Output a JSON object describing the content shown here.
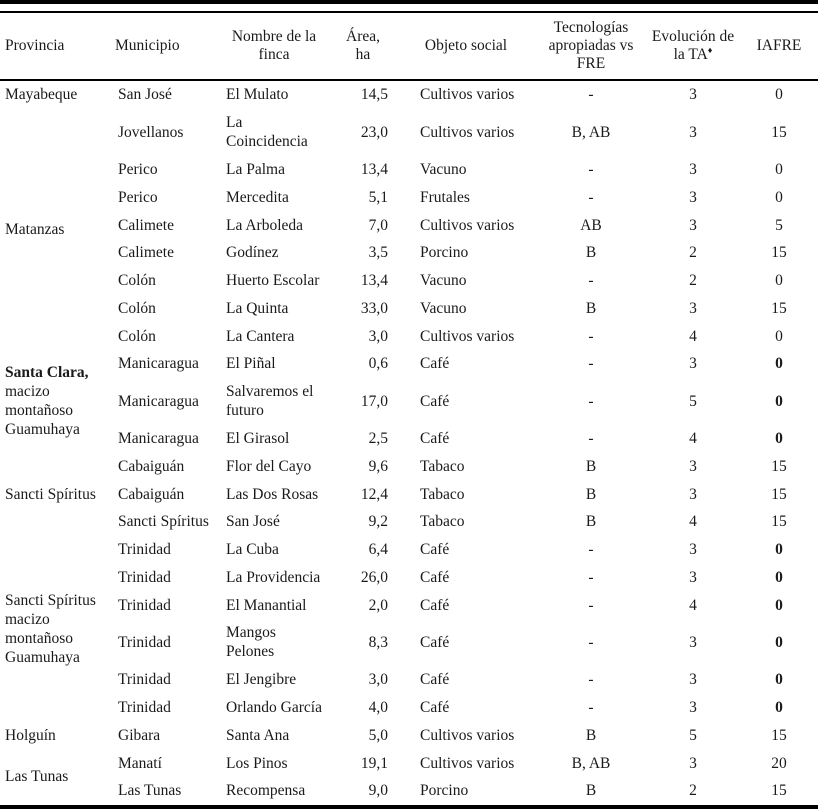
{
  "table": {
    "columns": [
      {
        "label": "Provincia"
      },
      {
        "label": "Municipio"
      },
      {
        "label": "Nombre de la finca"
      },
      {
        "label": "Área, ha"
      },
      {
        "label": "Objeto social"
      },
      {
        "label": "Tecnologías apropiadas vs FRE"
      },
      {
        "label": "Evolución de la TA",
        "sup": "♦"
      },
      {
        "label": "IAFRE"
      }
    ],
    "rows": [
      {
        "group": {
          "label": "Mayabeque",
          "rowspan": 1
        },
        "municipio": "San José",
        "finca": "El Mulato",
        "area": "14,5",
        "objeto": "Cultivos varios",
        "tecnologias": "-",
        "evolucion": "3",
        "iafre": "0"
      },
      {
        "group": {
          "label": "Matanzas",
          "rowspan": 8
        },
        "municipio": "Jovellanos",
        "finca": "La Coincidencia",
        "area": "23,0",
        "objeto": "Cultivos varios",
        "tecnologias": "B, AB",
        "evolucion": "3",
        "iafre": "15"
      },
      {
        "municipio": "Perico",
        "finca": "La Palma",
        "area": "13,4",
        "objeto": "Vacuno",
        "tecnologias": "-",
        "evolucion": "3",
        "iafre": "0"
      },
      {
        "municipio": "Perico",
        "finca": "Mercedita",
        "area": "5,1",
        "objeto": "Frutales",
        "tecnologias": "-",
        "evolucion": "3",
        "iafre": "0"
      },
      {
        "municipio": "Calimete",
        "finca": "La Arboleda",
        "area": "7,0",
        "objeto": "Cultivos varios",
        "tecnologias": "AB",
        "evolucion": "3",
        "iafre": "5"
      },
      {
        "municipio": "Calimete",
        "finca": "Godínez",
        "area": "3,5",
        "objeto": "Porcino",
        "tecnologias": "B",
        "evolucion": "2",
        "iafre": "15"
      },
      {
        "municipio": "Colón",
        "finca": "Huerto Escolar",
        "area": "13,4",
        "objeto": "Vacuno",
        "tecnologias": "-",
        "evolucion": "2",
        "iafre": "0"
      },
      {
        "municipio": "Colón",
        "finca": "La Quinta",
        "area": "33,0",
        "objeto": "Vacuno",
        "tecnologias": "B",
        "evolucion": "3",
        "iafre": "15"
      },
      {
        "municipio": "Colón",
        "finca": "La Cantera",
        "area": "3,0",
        "objeto": "Cultivos varios",
        "tecnologias": "-",
        "evolucion": "4",
        "iafre": "0"
      },
      {
        "group": {
          "bold_prefix": "Santa Clara,",
          "rest": " macizo montañoso Guamuhaya",
          "rowspan": 3
        },
        "municipio": "Manicaragua",
        "finca": "El Piñal",
        "area": "0,6",
        "objeto": "Café",
        "tecnologias": "-",
        "evolucion": "3",
        "iafre": "0",
        "iafre_bold": true
      },
      {
        "municipio": "Manicaragua",
        "finca": "Salvaremos el futuro",
        "area": "17,0",
        "objeto": "Café",
        "tecnologias": "-",
        "evolucion": "5",
        "iafre": "0",
        "iafre_bold": true
      },
      {
        "municipio": "Manicaragua",
        "finca": "El Girasol",
        "area": "2,5",
        "objeto": "Café",
        "tecnologias": "-",
        "evolucion": "4",
        "iafre": "0",
        "iafre_bold": true
      },
      {
        "group": {
          "label": "Sancti Spíritus",
          "rowspan": 3
        },
        "municipio": "Cabaiguán",
        "finca": "Flor del Cayo",
        "area": "9,6",
        "objeto": "Tabaco",
        "tecnologias": "B",
        "evolucion": "3",
        "iafre": "15"
      },
      {
        "municipio": "Cabaiguán",
        "finca": "Las Dos Rosas",
        "area": "12,4",
        "objeto": "Tabaco",
        "tecnologias": "B",
        "evolucion": "3",
        "iafre": "15"
      },
      {
        "municipio": "Sancti Spíritus",
        "finca": "San José",
        "area": "9,2",
        "objeto": "Tabaco",
        "tecnologias": "B",
        "evolucion": "4",
        "iafre": "15"
      },
      {
        "group": {
          "label": "Sancti Spíritus macizo montañoso Guamuhaya",
          "rowspan": 6
        },
        "municipio": "Trinidad",
        "finca": "La Cuba",
        "area": "6,4",
        "objeto": "Café",
        "tecnologias": "-",
        "evolucion": "3",
        "iafre": "0",
        "iafre_bold": true
      },
      {
        "municipio": "Trinidad",
        "finca": "La Providencia",
        "area": "26,0",
        "objeto": "Café",
        "tecnologias": "-",
        "evolucion": "3",
        "iafre": "0",
        "iafre_bold": true
      },
      {
        "municipio": "Trinidad",
        "finca": "El Manantial",
        "area": "2,0",
        "objeto": "Café",
        "tecnologias": "-",
        "evolucion": "4",
        "iafre": "0",
        "iafre_bold": true
      },
      {
        "municipio": "Trinidad",
        "finca": "Mangos Pelones",
        "area": "8,3",
        "objeto": "Café",
        "tecnologias": "-",
        "evolucion": "3",
        "iafre": "0",
        "iafre_bold": true
      },
      {
        "municipio": "Trinidad",
        "finca": "El Jengibre",
        "area": "3,0",
        "objeto": "Café",
        "tecnologias": "-",
        "evolucion": "3",
        "iafre": "0",
        "iafre_bold": true
      },
      {
        "municipio": "Trinidad",
        "finca": "Orlando García",
        "area": "4,0",
        "objeto": "Café",
        "tecnologias": "-",
        "evolucion": "3",
        "iafre": "0",
        "iafre_bold": true
      },
      {
        "group": {
          "label": "Holguín",
          "rowspan": 1
        },
        "municipio": "Gibara",
        "finca": "Santa Ana",
        "area": "5,0",
        "objeto": "Cultivos varios",
        "tecnologias": "B",
        "evolucion": "5",
        "iafre": "15"
      },
      {
        "group": {
          "label": "Las Tunas",
          "rowspan": 2
        },
        "municipio": "Manatí",
        "finca": "Los Pinos",
        "area": "19,1",
        "objeto": "Cultivos varios",
        "tecnologias": "B, AB",
        "evolucion": "3",
        "iafre": "20"
      },
      {
        "municipio": "Las Tunas",
        "finca": "Recompensa",
        "area": "9,0",
        "objeto": "Porcino",
        "tecnologias": "B",
        "evolucion": "2",
        "iafre": "15"
      }
    ]
  },
  "colors": {
    "background": "#ffffff",
    "text": "#1a1a1a",
    "rule": "#000000"
  }
}
